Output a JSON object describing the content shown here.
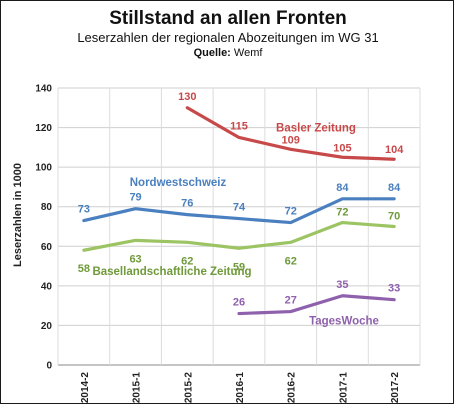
{
  "title": "Stillstand an allen Fronten",
  "subtitle": "Leserzahlen der regionalen Abozeitungen im WG 31",
  "source_label": "Quelle:",
  "source_value": " Wemf",
  "chart_data": {
    "type": "line",
    "x": [
      "2014-2",
      "2015-1",
      "2015-2",
      "2016-1",
      "2016-2",
      "2017-1",
      "2017-2"
    ],
    "ylabel": "Leserzahlen in 1000",
    "xlabel": "",
    "ylim": [
      0,
      140
    ],
    "yticks": [
      0,
      20,
      40,
      60,
      80,
      100,
      120,
      140
    ],
    "grid": true,
    "series": [
      {
        "name": "Basler Zeitung",
        "color": "#c8494a",
        "values": [
          null,
          null,
          130,
          115,
          109,
          105,
          104
        ]
      },
      {
        "name": "Nordwestschweiz",
        "color": "#4a80c0",
        "values": [
          73,
          79,
          76,
          74,
          72,
          84,
          84
        ]
      },
      {
        "name": "Basellandschaftliche Zeitung",
        "color": "#9cc462",
        "label_color": "#6f9a3a",
        "values": [
          58,
          63,
          62,
          59,
          62,
          72,
          70
        ]
      },
      {
        "name": "TagesWoche",
        "color": "#8f61ad",
        "values": [
          null,
          null,
          null,
          26,
          27,
          35,
          33
        ]
      }
    ]
  }
}
